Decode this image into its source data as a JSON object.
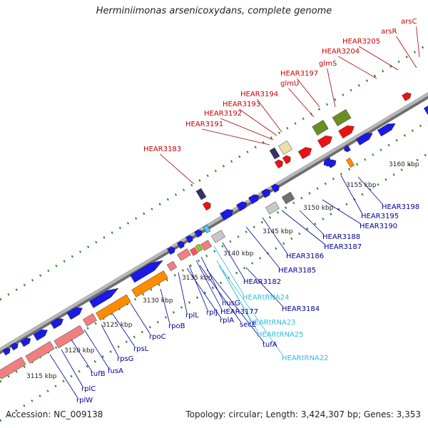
{
  "title": "Herminiimonas arsenicoxydans, complete genome",
  "footer": {
    "accession": "Accession: NC_009138",
    "summary": "Topology: circular; Length: 3,424,307 bp; Genes: 3,353"
  },
  "colors": {
    "backbone": "#8c8c8c",
    "ticks": "#2a8a2a",
    "label_top": "#cc0000",
    "label_bottom": "#000099",
    "label_trna": "#33bbdd",
    "gene_blue": "#1a1ae6",
    "gene_red": "#ee1111",
    "gene_green": "#6b8e23",
    "gene_orange": "#ff8c00",
    "gene_salmon": "#f08080",
    "gene_gray": "#999999"
  },
  "scale_labels": [
    "3115 kbp",
    "3120 kbp",
    "3125 kbp",
    "3130 kbp",
    "3135 kbp",
    "3140 kbp",
    "3145 kbp",
    "3150 kbp",
    "3155 kbp",
    "3160 kbp"
  ],
  "top_labels": [
    {
      "text": "arsC"
    },
    {
      "text": "arsR"
    },
    {
      "text": "HEAR3205"
    },
    {
      "text": "HEAR3204"
    },
    {
      "text": "glmS"
    },
    {
      "text": "HEAR3197"
    },
    {
      "text": "glmU"
    },
    {
      "text": "HEAR3194"
    },
    {
      "text": "HEAR3193"
    },
    {
      "text": "HEAR3192"
    },
    {
      "text": "HEAR3191"
    },
    {
      "text": "HEAR3183"
    }
  ],
  "bottom_labels": [
    {
      "text": "HEAR3198",
      "kind": "gene"
    },
    {
      "text": "HEAR3195",
      "kind": "gene"
    },
    {
      "text": "HEAR3190",
      "kind": "gene"
    },
    {
      "text": "HEAR3188",
      "kind": "gene"
    },
    {
      "text": "HEAR3187",
      "kind": "gene"
    },
    {
      "text": "HEAR3186",
      "kind": "gene"
    },
    {
      "text": "HEAR3185",
      "kind": "gene"
    },
    {
      "text": "HEAR3182",
      "kind": "gene"
    },
    {
      "text": "HEARtRNA24",
      "kind": "trna"
    },
    {
      "text": "HEAR3184",
      "kind": "gene"
    },
    {
      "text": "nusG",
      "kind": "gene"
    },
    {
      "text": "HEAR3177",
      "kind": "gene"
    },
    {
      "text": "HEARtRNA23",
      "kind": "trna"
    },
    {
      "text": "rplJ",
      "kind": "gene"
    },
    {
      "text": "rplA",
      "kind": "gene"
    },
    {
      "text": "secE",
      "kind": "gene"
    },
    {
      "text": "HEARtRNA25",
      "kind": "trna"
    },
    {
      "text": "tufA",
      "kind": "gene"
    },
    {
      "text": "HEARtRNA22",
      "kind": "trna"
    },
    {
      "text": "rplL",
      "kind": "gene"
    },
    {
      "text": "rpoB",
      "kind": "gene"
    },
    {
      "text": "rpoC",
      "kind": "gene"
    },
    {
      "text": "rpsL",
      "kind": "gene"
    },
    {
      "text": "rpsG",
      "kind": "gene"
    },
    {
      "text": "fusA",
      "kind": "gene"
    },
    {
      "text": "tufB",
      "kind": "gene"
    },
    {
      "text": "rplC",
      "kind": "gene"
    },
    {
      "text": "rplW",
      "kind": "gene"
    }
  ]
}
